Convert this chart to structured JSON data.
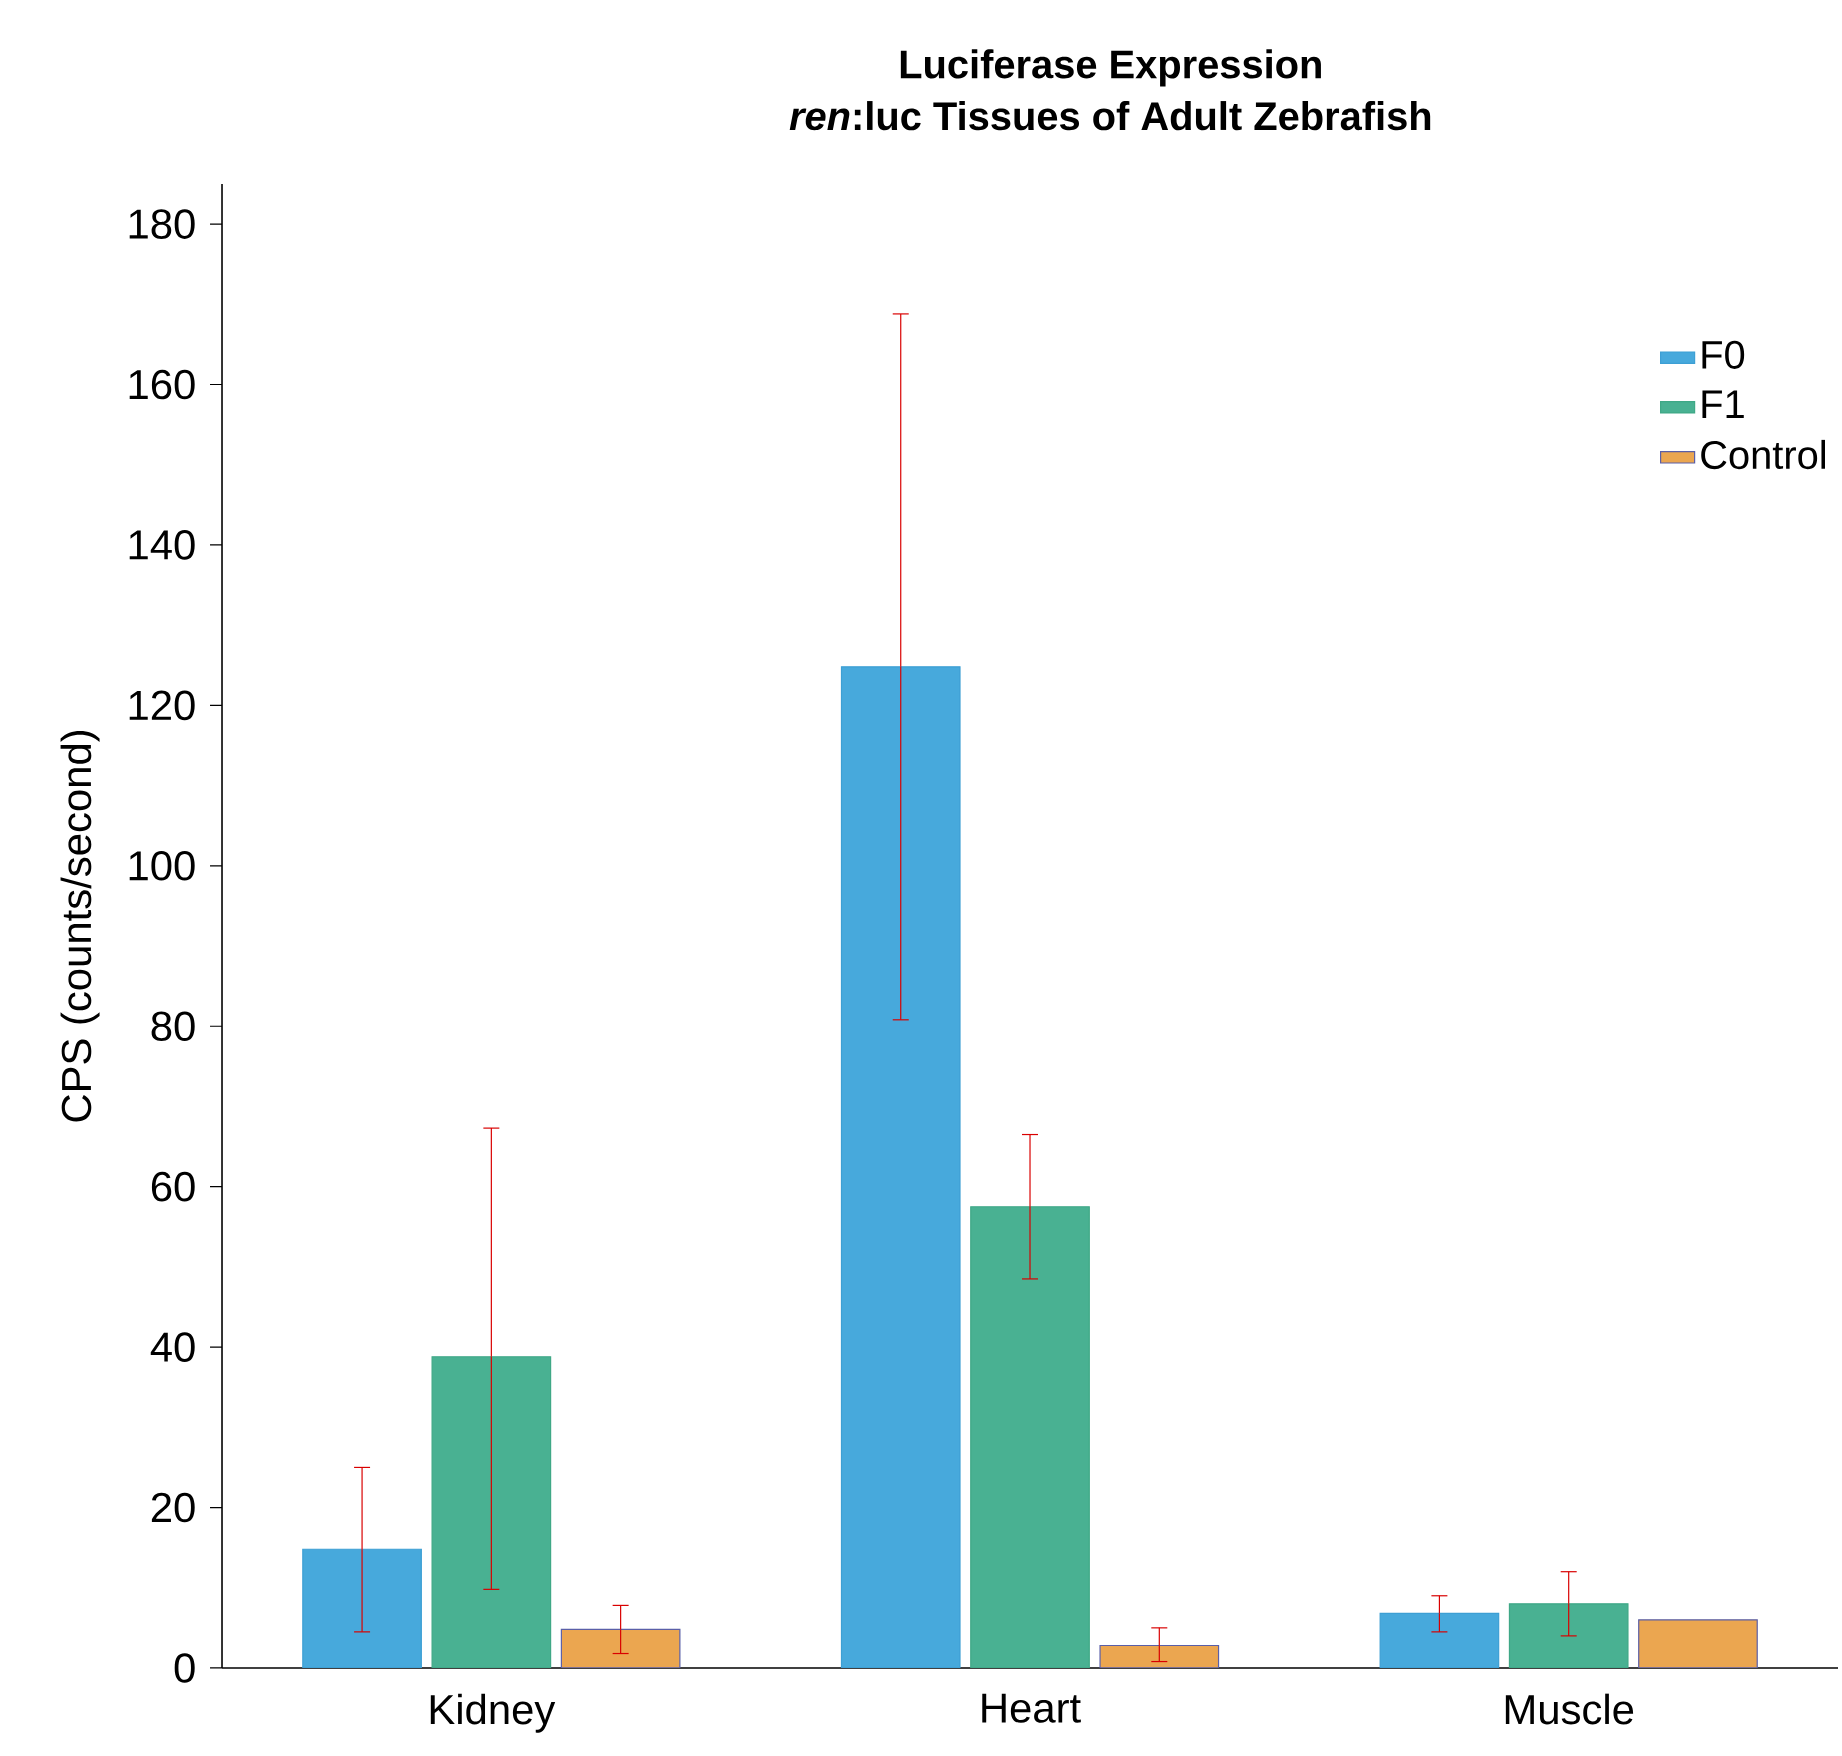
{
  "chart_data": {
    "type": "bar",
    "title": "Luciferase Expression",
    "subtitle": "*ren*:luc Tissues of Adult Zebrafish",
    "ylabel": "CPS (counts/second)",
    "categories": [
      "Kidney",
      "Heart",
      "Muscle"
    ],
    "series": [
      {
        "name": "F0",
        "color": "#47a9dc",
        "values": [
          14.8,
          124.8,
          6.8
        ],
        "errors": [
          [
            4.5,
            25
          ],
          [
            80.8,
            168.8
          ],
          [
            4.5,
            9
          ]
        ]
      },
      {
        "name": "F1",
        "color": "#49b192",
        "values": [
          38.8,
          57.5,
          8
        ],
        "errors": [
          [
            9.8,
            67.3
          ],
          [
            48.5,
            66.5
          ],
          [
            4,
            12
          ]
        ]
      },
      {
        "name": "Control",
        "color": "#eba650",
        "values": [
          4.8,
          2.8,
          6
        ],
        "errors": [
          [
            1.8,
            7.8
          ],
          [
            0.8,
            5
          ],
          null
        ]
      }
    ],
    "ylim": [
      0,
      185
    ],
    "yticks": [
      0,
      20,
      40,
      60,
      80,
      100,
      120,
      140,
      160,
      180
    ],
    "legend": "top right",
    "grid": false
  }
}
